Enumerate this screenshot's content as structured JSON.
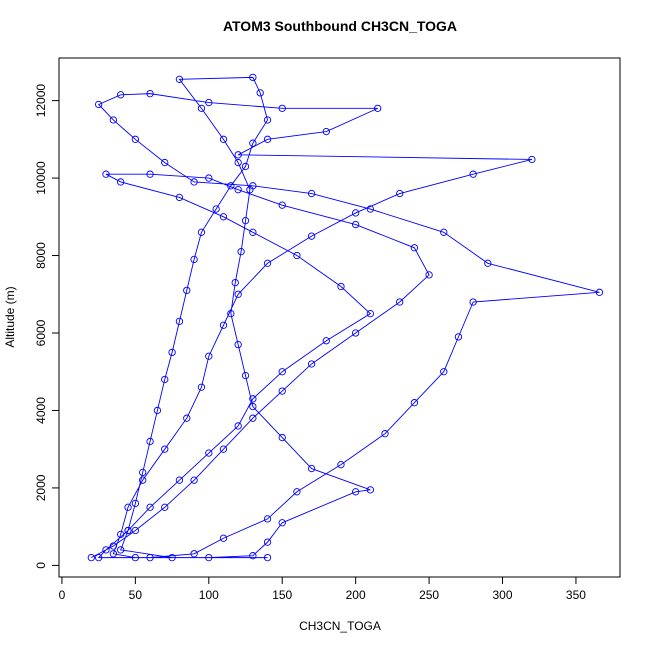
{
  "chart_data": {
    "type": "line",
    "title": "ATOM3 Southbound CH3CN_TOGA",
    "x_label": "CH3CN_TOGA",
    "y_label": "Altitude (m)",
    "color": "#0000ff",
    "markers": true,
    "x": [
      20,
      35,
      50,
      70,
      90,
      110,
      130,
      150,
      170,
      200,
      230,
      250,
      240,
      200,
      150,
      120,
      100,
      60,
      30,
      40,
      80,
      110,
      130,
      160,
      190,
      210,
      180,
      150,
      130,
      120,
      100,
      80,
      60,
      45,
      30,
      25,
      60,
      90,
      110,
      140,
      160,
      190,
      220,
      240,
      260,
      270,
      280,
      366,
      290,
      260,
      210,
      170,
      130,
      90,
      70,
      50,
      35,
      25,
      40,
      60,
      100,
      150,
      215,
      180,
      140,
      120,
      320,
      280,
      230,
      200,
      170,
      140,
      120,
      110,
      100,
      95,
      85,
      70,
      55,
      45,
      40,
      35,
      50,
      100,
      130,
      140,
      150,
      200,
      210,
      170,
      150,
      130,
      125,
      120,
      115,
      118,
      122,
      125,
      128,
      120,
      110,
      95,
      80,
      130,
      135,
      140,
      130,
      125,
      115,
      105,
      95,
      90,
      85,
      80,
      75,
      70,
      65,
      60,
      55,
      50,
      45,
      40,
      75,
      140
    ],
    "values": [
      200,
      500,
      900,
      1500,
      2200,
      3000,
      3800,
      4500,
      5200,
      6000,
      6800,
      7500,
      8200,
      8800,
      9300,
      9700,
      10000,
      10100,
      10100,
      9900,
      9500,
      9000,
      8600,
      8000,
      7200,
      6500,
      5800,
      5000,
      4300,
      3600,
      2900,
      2200,
      1500,
      900,
      400,
      200,
      200,
      300,
      700,
      1200,
      1900,
      2600,
      3400,
      4200,
      5000,
      5900,
      6800,
      7050,
      7800,
      8600,
      9200,
      9600,
      9800,
      9900,
      10400,
      11000,
      11500,
      11900,
      12150,
      12180,
      11950,
      11800,
      11800,
      11200,
      11000,
      10600,
      10480,
      10100,
      9600,
      9100,
      8500,
      7800,
      7000,
      6200,
      5400,
      4600,
      3800,
      3000,
      2200,
      1500,
      800,
      300,
      200,
      200,
      250,
      600,
      1100,
      1900,
      1950,
      2500,
      3300,
      4100,
      4900,
      5700,
      6500,
      7300,
      8100,
      8900,
      9700,
      10400,
      11000,
      11800,
      12550,
      12600,
      12200,
      11500,
      10900,
      10300,
      9800,
      9200,
      8600,
      7900,
      7100,
      6300,
      5500,
      4800,
      4000,
      3200,
      2400,
      1600,
      900,
      400,
      200,
      200
    ],
    "xlim": [
      -2,
      380
    ],
    "xticks": [
      0,
      50,
      100,
      150,
      200,
      250,
      300,
      350
    ],
    "ylim": [
      -300,
      13100
    ],
    "yticks": [
      0,
      2000,
      4000,
      6000,
      8000,
      10000,
      12000
    ]
  }
}
